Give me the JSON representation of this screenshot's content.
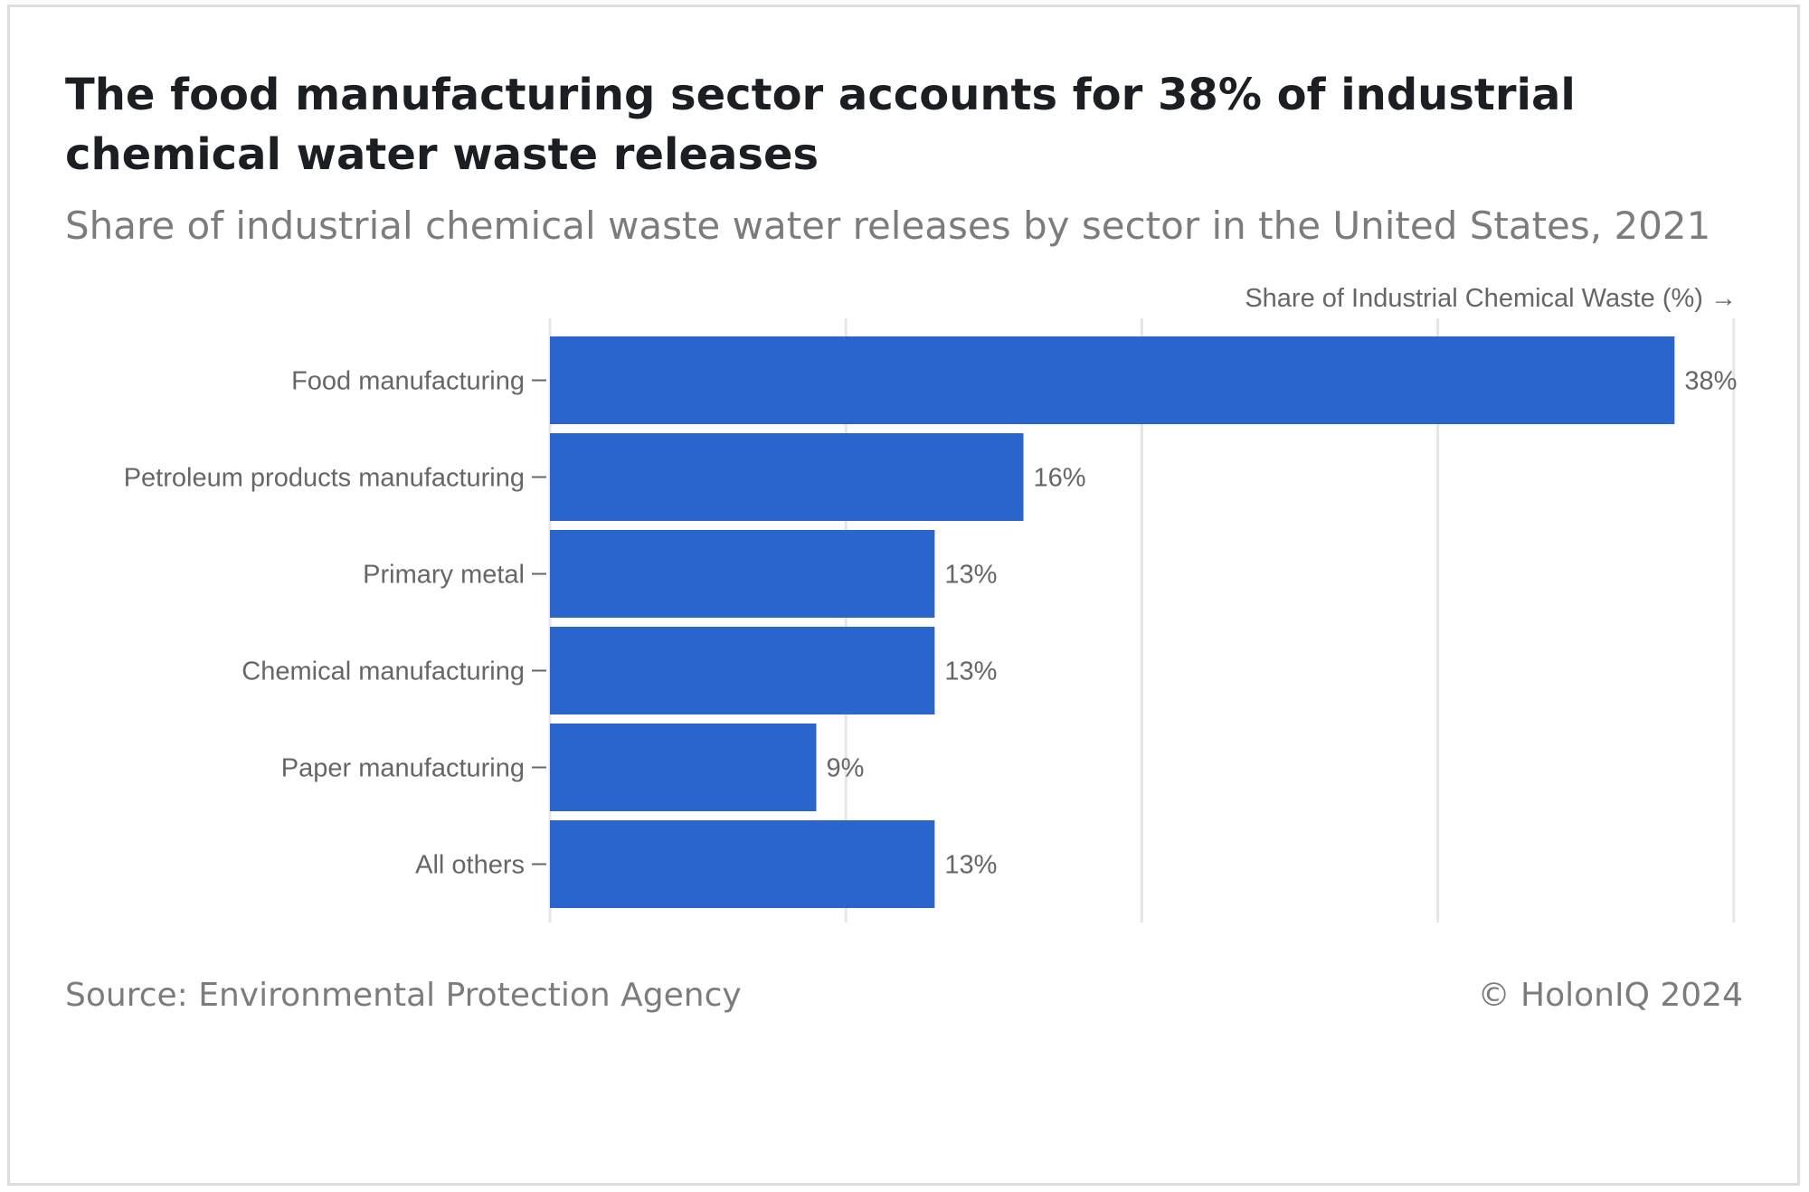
{
  "header": {
    "title": "The food manufacturing sector accounts for 38% of industrial chemical water waste releases",
    "subtitle": "Share of industrial chemical waste water releases by sector in the United States, 2021"
  },
  "footer": {
    "source": "Source: Environmental Protection Agency",
    "copyright": "© HolonIQ 2024"
  },
  "chart_data": {
    "type": "bar",
    "orientation": "horizontal",
    "title": "The food manufacturing sector accounts for 38% of industrial chemical water waste releases",
    "subtitle": "Share of industrial chemical waste water releases by sector in the United States, 2021",
    "xlabel": "Share of Industrial Chemical Waste (%) →",
    "ylabel": "",
    "categories": [
      "Food manufacturing",
      "Petroleum products manufacturing",
      "Primary metal",
      "Chemical manufacturing",
      "Paper manufacturing",
      "All others"
    ],
    "values": [
      38,
      16,
      13,
      13,
      9,
      13
    ],
    "value_labels": [
      "38%",
      "16%",
      "13%",
      "13%",
      "9%",
      "13%"
    ],
    "xlim": [
      0,
      40
    ],
    "grid": true,
    "bar_color": "#2a65cd",
    "grid_color": "#e6e6e6"
  }
}
